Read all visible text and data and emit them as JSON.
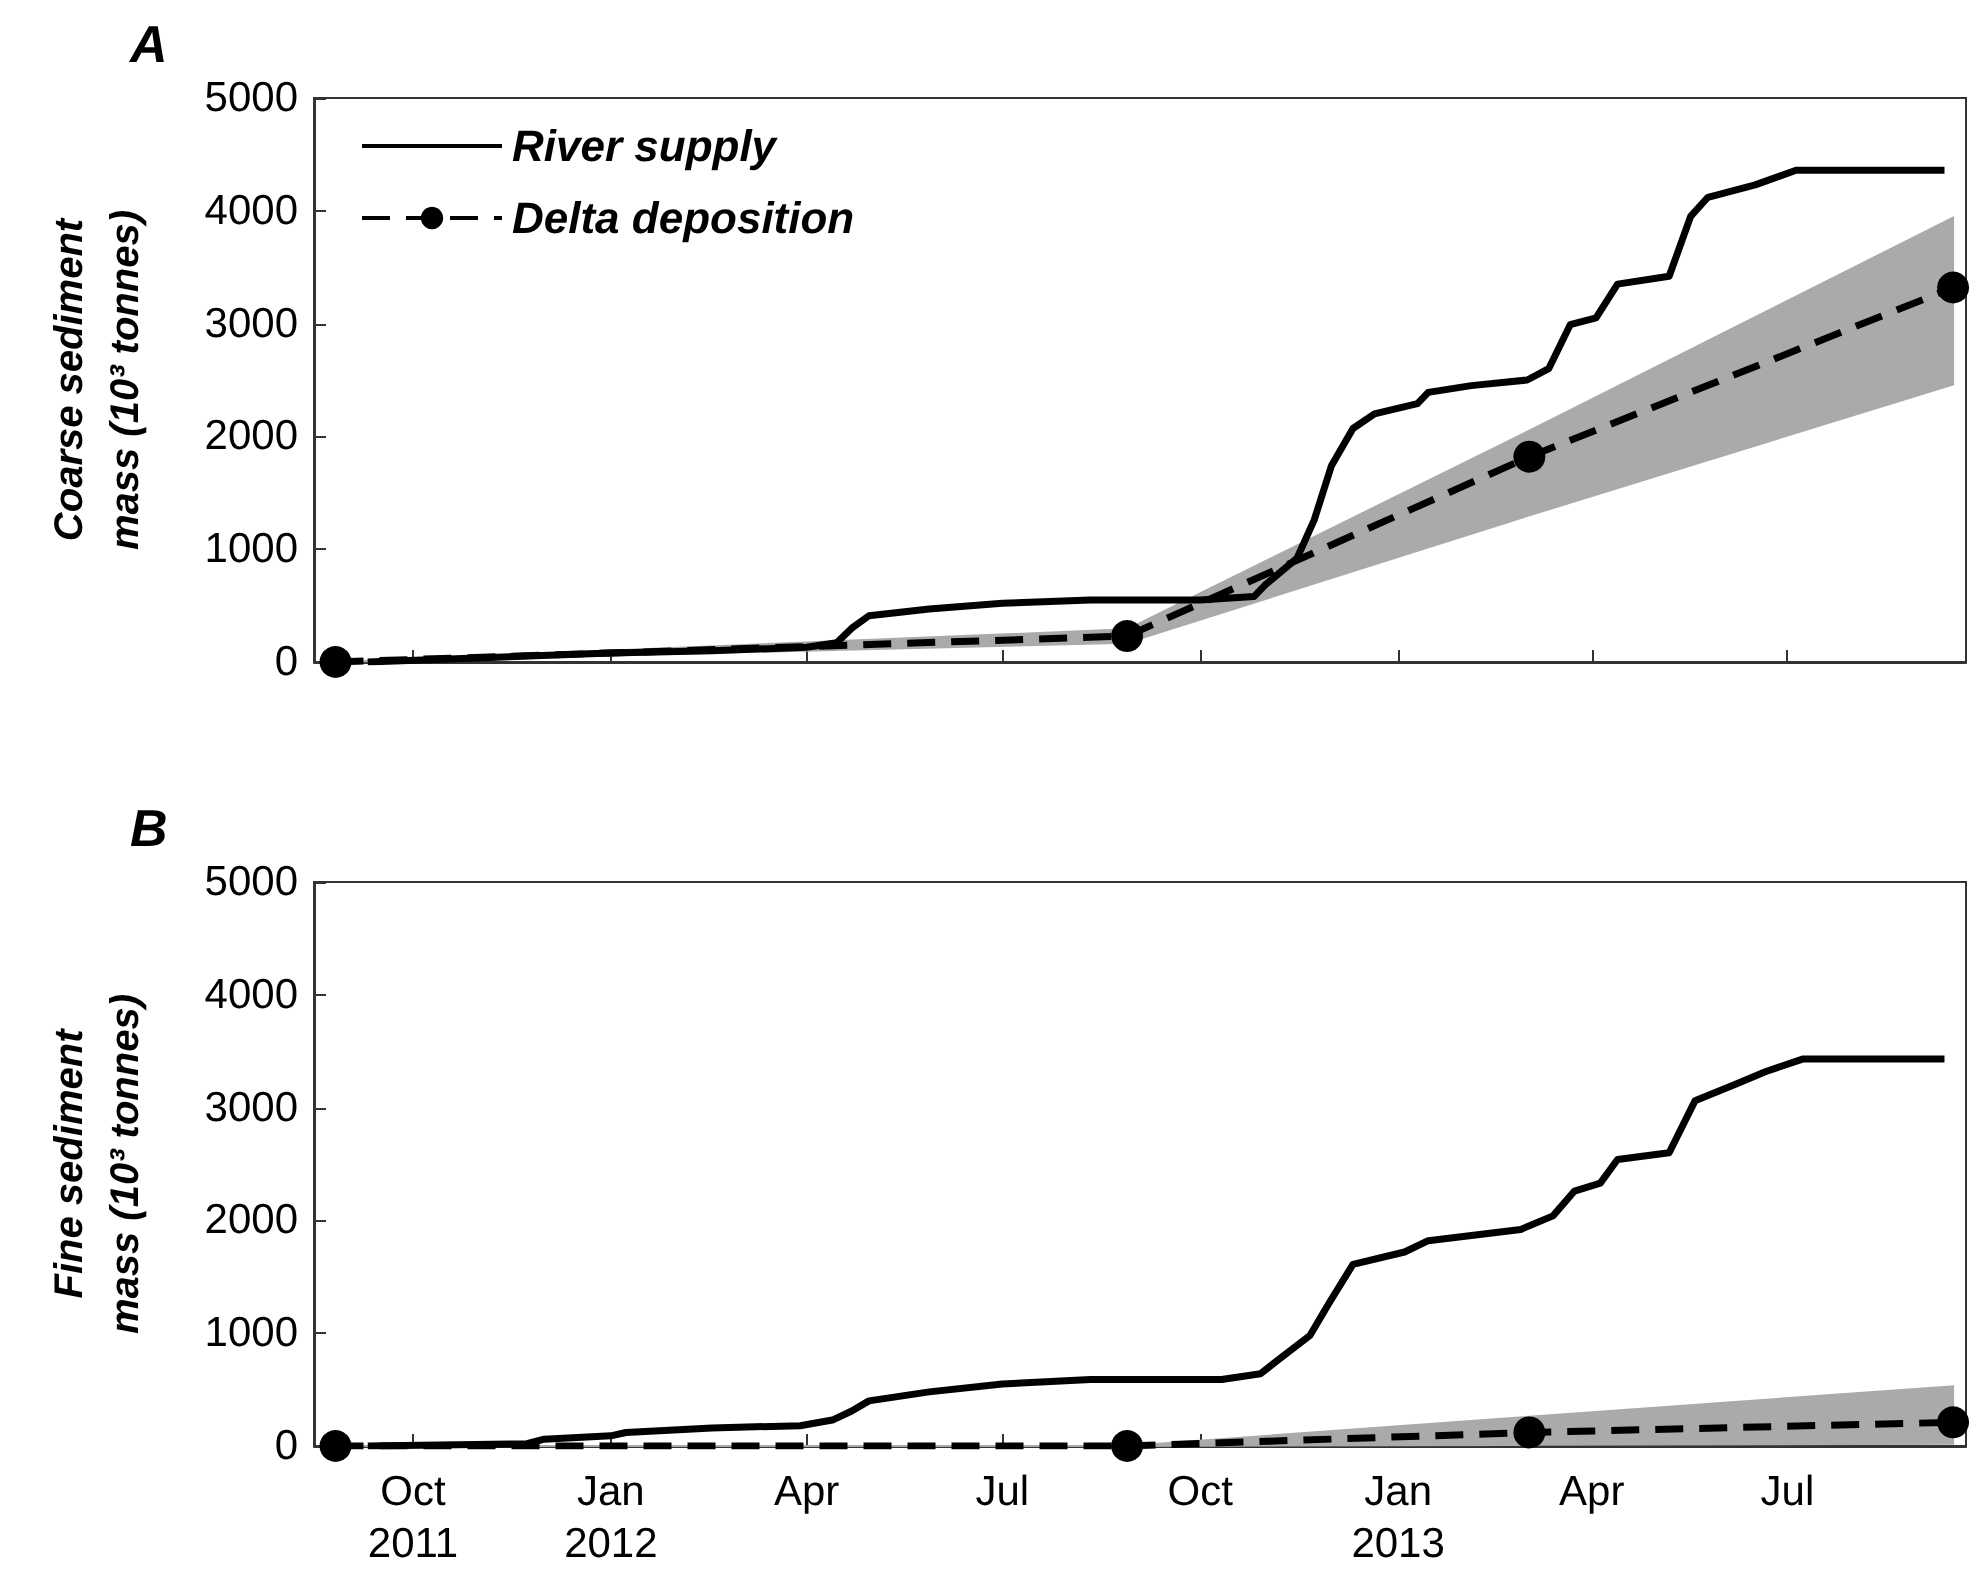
{
  "chart_data": [
    {
      "type": "line",
      "title": "A",
      "ylabel": "Coarse sediment mass (10³ tonnes)",
      "xlim": [
        "2011-08-16",
        "2013-09-22"
      ],
      "xticks": [
        {
          "value": "2011-10-01",
          "label": null
        },
        {
          "value": "2012-01-01",
          "label": null
        },
        {
          "value": "2012-04-01",
          "label": null
        },
        {
          "value": "2012-07-01",
          "label": null
        },
        {
          "value": "2012-10-01",
          "label": null
        },
        {
          "value": "2013-01-01",
          "label": null
        },
        {
          "value": "2013-04-01",
          "label": null
        },
        {
          "value": "2013-07-01",
          "label": null
        }
      ],
      "ylim": [
        0,
        5000
      ],
      "yticks": [
        0,
        1000,
        2000,
        3000,
        4000,
        5000
      ],
      "tick_labels": "y",
      "grid": false,
      "legend": "top left",
      "series": [
        {
          "name": "River supply",
          "color": "#000000",
          "marker": "none",
          "line_style": "solid",
          "x": [
            "2011-09-10",
            "2012-01-01",
            "2012-02-17",
            "2012-04-01",
            "2012-04-15",
            "2012-04-22",
            "2012-04-30",
            "2012-05-28",
            "2012-07-01",
            "2012-08-11",
            "2012-10-01",
            "2012-10-26",
            "2012-10-31",
            "2012-11-15",
            "2012-11-23",
            "2012-12-01",
            "2012-12-11",
            "2012-12-21",
            "2013-01-10",
            "2013-01-15",
            "2013-02-04",
            "2013-03-02",
            "2013-03-12",
            "2013-03-22",
            "2013-04-03",
            "2013-04-13",
            "2013-05-07",
            "2013-05-17",
            "2013-05-25",
            "2013-06-16",
            "2013-07-05",
            "2013-09-12"
          ],
          "values": [
            0,
            80,
            100,
            130,
            170,
            300,
            410,
            470,
            520,
            550,
            550,
            580,
            680,
            920,
            1260,
            1740,
            2070,
            2200,
            2290,
            2390,
            2450,
            2500,
            2600,
            2990,
            3050,
            3350,
            3420,
            3950,
            4120,
            4230,
            4360,
            4360
          ]
        },
        {
          "name": "Delta deposition",
          "color": "#000000",
          "marker": "circle",
          "line_style": "dashed",
          "x": [
            "2011-08-26",
            "2012-08-28",
            "2013-03-03",
            "2013-09-16"
          ],
          "values": [
            0,
            230,
            1820,
            3320
          ],
          "lower": [
            0,
            170,
            1300,
            2460
          ],
          "upper": [
            0,
            290,
            2050,
            3940
          ]
        }
      ]
    },
    {
      "type": "line",
      "title": "B",
      "ylabel": "Fine sediment mass (10³ tonnes)",
      "xlim": [
        "2011-08-16",
        "2013-09-22"
      ],
      "xticks": [
        {
          "value": "2011-10-01",
          "label": "Oct\n2011"
        },
        {
          "value": "2012-01-01",
          "label": "Jan\n2012"
        },
        {
          "value": "2012-04-01",
          "label": "Apr"
        },
        {
          "value": "2012-07-01",
          "label": "Jul"
        },
        {
          "value": "2012-10-01",
          "label": "Oct"
        },
        {
          "value": "2013-01-01",
          "label": "Jan\n2013"
        },
        {
          "value": "2013-04-01",
          "label": "Apr"
        },
        {
          "value": "2013-07-01",
          "label": "Jul"
        }
      ],
      "ylim": [
        0,
        5000
      ],
      "yticks": [
        0,
        1000,
        2000,
        3000,
        4000,
        5000
      ],
      "grid": false,
      "series": [
        {
          "color": "#000000",
          "marker": "none",
          "line_style": "solid",
          "x": [
            "2011-09-10",
            "2011-11-23",
            "2011-12-01",
            "2012-01-01",
            "2012-01-08",
            "2012-02-17",
            "2012-03-29",
            "2012-04-13",
            "2012-04-22",
            "2012-04-30",
            "2012-05-28",
            "2012-07-01",
            "2012-08-11",
            "2012-10-11",
            "2012-10-29",
            "2012-11-06",
            "2012-11-21",
            "2012-11-30",
            "2012-12-11",
            "2013-01-04",
            "2013-01-15",
            "2013-02-27",
            "2013-03-14",
            "2013-03-24",
            "2013-04-05",
            "2013-04-13",
            "2013-05-07",
            "2013-05-19",
            "2013-06-06",
            "2013-06-21",
            "2013-07-08",
            "2013-09-12"
          ],
          "values": [
            0,
            20,
            60,
            90,
            120,
            160,
            180,
            230,
            310,
            400,
            480,
            550,
            590,
            590,
            640,
            760,
            980,
            1270,
            1610,
            1720,
            1820,
            1920,
            2040,
            2260,
            2330,
            2540,
            2600,
            3060,
            3200,
            3320,
            3430,
            3430
          ]
        },
        {
          "color": "#000000",
          "marker": "circle",
          "line_style": "dashed",
          "x": [
            "2011-08-26",
            "2012-08-28",
            "2013-03-03",
            "2013-09-16"
          ],
          "values": [
            0,
            0,
            120,
            210
          ],
          "lower": [
            0,
            0,
            10,
            20
          ],
          "upper": [
            0,
            0,
            260,
            530
          ]
        }
      ]
    }
  ]
}
